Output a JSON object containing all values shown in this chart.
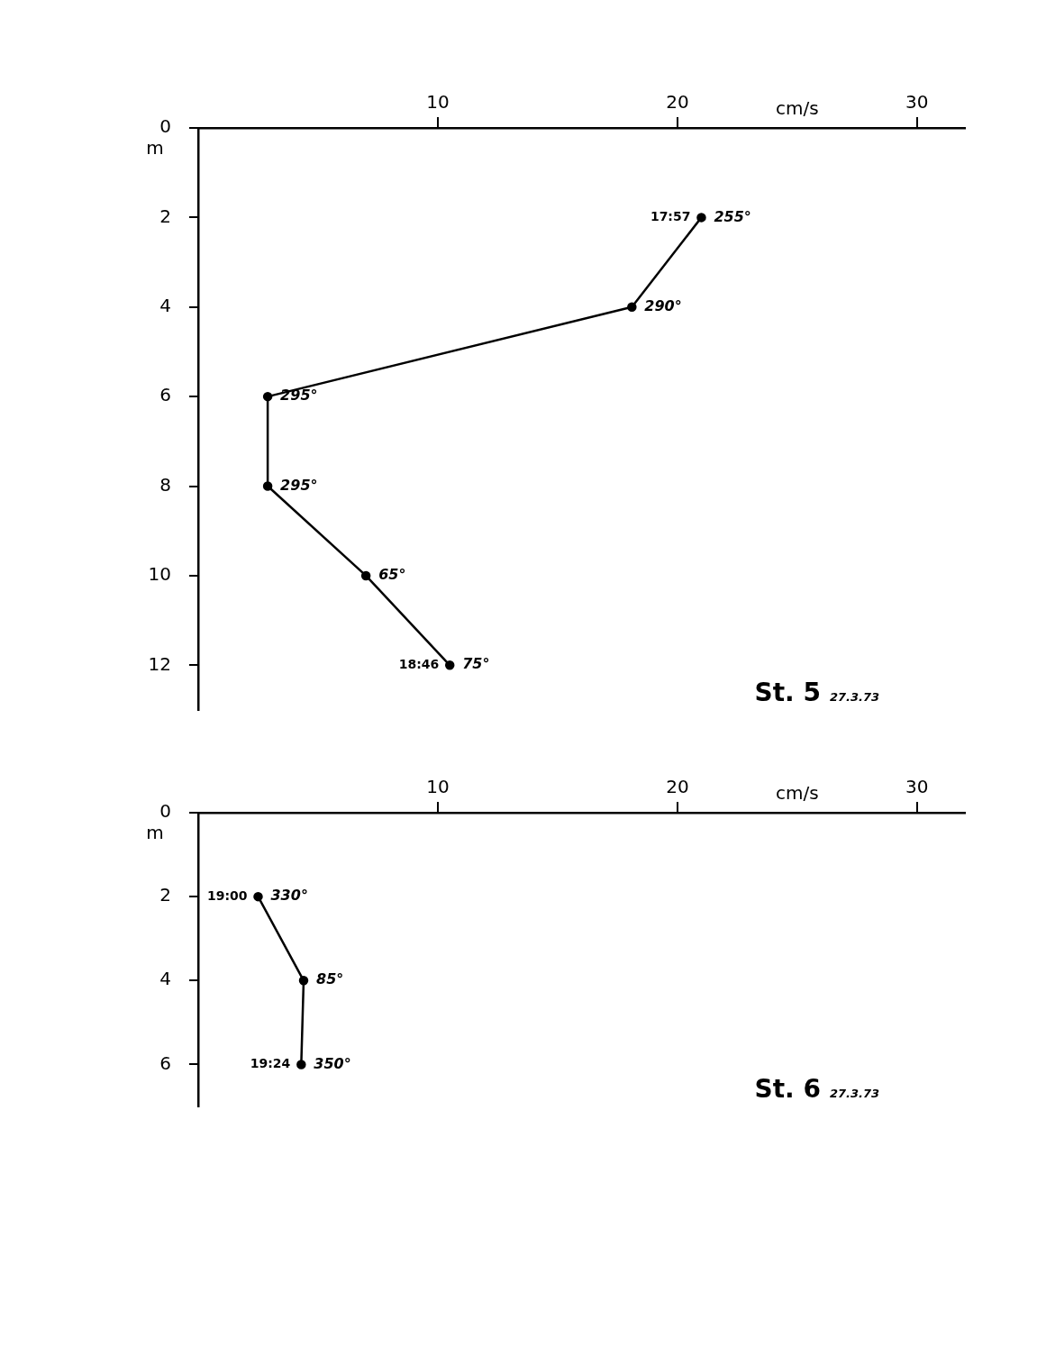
{
  "chart_data": [
    {
      "type": "line",
      "title": "St. 5",
      "subtitle": "27.3.73",
      "xlabel": "cm/s",
      "ylabel": "m",
      "series": [
        {
          "color": "#000000",
          "x": [
            21.0,
            18.1,
            2.9,
            2.9,
            7.0,
            10.5
          ],
          "values": [
            2,
            4,
            6,
            8,
            10,
            12
          ]
        }
      ],
      "xlim": [
        0,
        32
      ],
      "xticks": [
        10,
        20,
        30
      ],
      "ylim": [
        13,
        0
      ],
      "yticks": [
        0,
        2,
        4,
        6,
        8,
        10,
        12
      ],
      "grid": false,
      "legend": false,
      "marker": "circle",
      "line_style": "solid",
      "annotations": [
        {
          "text": "17:57",
          "x": 21.0,
          "y": 2
        },
        {
          "text": "255°",
          "x": 21.0,
          "y": 2
        },
        {
          "text": "290°",
          "x": 18.1,
          "y": 4
        },
        {
          "text": "295°",
          "x": 2.9,
          "y": 6
        },
        {
          "text": "295°",
          "x": 2.9,
          "y": 8
        },
        {
          "text": "65°",
          "x": 7.0,
          "y": 10
        },
        {
          "text": "18:46",
          "x": 10.5,
          "y": 12
        },
        {
          "text": "75°",
          "x": 10.5,
          "y": 12
        }
      ]
    },
    {
      "type": "line",
      "title": "St. 6",
      "subtitle": "27.3.73",
      "xlabel": "cm/s",
      "ylabel": "m",
      "series": [
        {
          "color": "#000000",
          "x": [
            2.5,
            4.4,
            4.3
          ],
          "values": [
            2,
            4,
            6
          ]
        }
      ],
      "xlim": [
        0,
        32
      ],
      "xticks": [
        10,
        20,
        30
      ],
      "ylim": [
        7,
        0
      ],
      "yticks": [
        0,
        2,
        4,
        6
      ],
      "grid": false,
      "legend": false,
      "marker": "circle",
      "line_style": "solid",
      "annotations": [
        {
          "text": "19:00",
          "x": 2.5,
          "y": 2
        },
        {
          "text": "330°",
          "x": 2.5,
          "y": 2
        },
        {
          "text": "85°",
          "x": 4.4,
          "y": 4
        },
        {
          "text": "19:24",
          "x": 4.3,
          "y": 6
        },
        {
          "text": "350°",
          "x": 4.3,
          "y": 6
        }
      ]
    }
  ]
}
